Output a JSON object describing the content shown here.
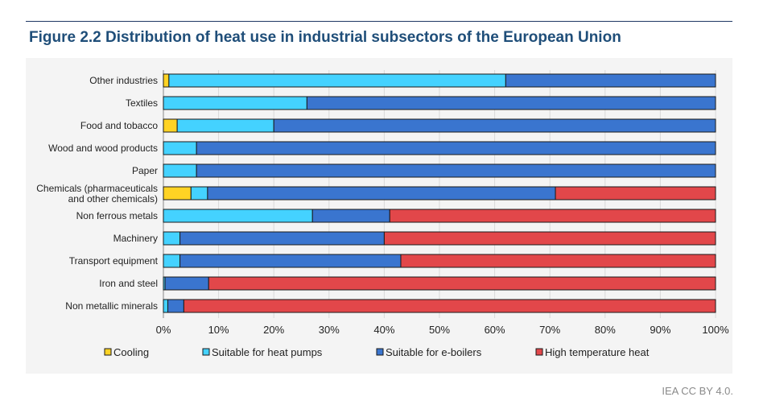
{
  "title": "Figure 2.2  Distribution of heat use in industrial subsectors of the European Union",
  "credit": "IEA CC BY 4.0.",
  "chart_data": {
    "type": "bar",
    "orientation": "horizontal",
    "stacked": true,
    "categories": [
      "Other industries",
      "Textiles",
      "Food and tobacco",
      "Wood and wood products",
      "Paper",
      "Chemicals (pharmaceuticals and other chemicals)",
      "Non ferrous metals",
      "Machinery",
      "Transport equipment",
      "Iron and steel",
      "Non metallic minerals"
    ],
    "series": [
      {
        "name": "Cooling",
        "color": "#ffd324",
        "values": [
          1,
          0,
          2.5,
          0,
          0,
          5,
          0,
          0,
          0,
          0,
          0
        ]
      },
      {
        "name": "Suitable for heat pumps",
        "color": "#44d2ff",
        "values": [
          61,
          26,
          17.5,
          6,
          6,
          3,
          27,
          3,
          3,
          0.3,
          0.8
        ]
      },
      {
        "name": "Suitable for e-boilers",
        "color": "#3a75cf",
        "values": [
          38,
          74,
          80,
          94,
          94,
          63,
          14,
          37,
          40,
          7.9,
          2.9
        ]
      },
      {
        "name": "High temperature heat",
        "color": "#e2474a",
        "values": [
          0,
          0,
          0,
          0,
          0,
          29,
          59,
          60,
          57,
          91.8,
          96.3
        ]
      }
    ],
    "xlim": [
      0,
      100
    ],
    "xticks": [
      "0%",
      "10%",
      "20%",
      "30%",
      "40%",
      "50%",
      "60%",
      "70%",
      "80%",
      "90%",
      "100%"
    ],
    "grid": true,
    "legend_position": "bottom"
  }
}
